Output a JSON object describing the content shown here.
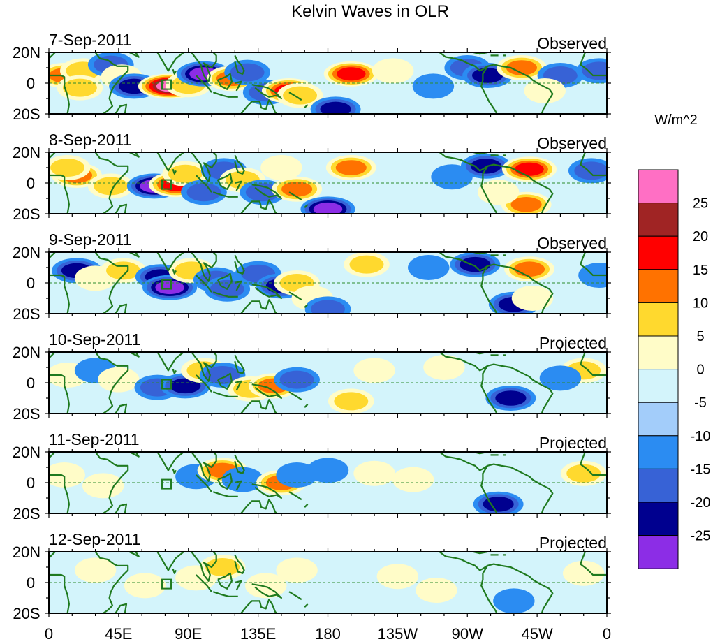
{
  "title": "Kelvin Waves in OLR",
  "units": "W/m^2",
  "chart_data": {
    "type": "heatmap",
    "title": "Kelvin Waves in OLR",
    "colorbar_label": "W/m^2",
    "colorbar_ticks": [
      "25",
      "20",
      "15",
      "10",
      "5",
      "0",
      "-5",
      "-10",
      "-15",
      "-20",
      "-25"
    ],
    "colorbar_levels": [
      30,
      25,
      20,
      15,
      10,
      5,
      0,
      -5,
      -10,
      -15,
      -20,
      -25
    ],
    "colorbar_colors": [
      "#ff6fc4",
      "#a02424",
      "#ff0000",
      "#ff7200",
      "#ffd92e",
      "#fffcc8",
      "#d3f4fb",
      "#a3cdfa",
      "#2b8cf2",
      "#3762d6",
      "#00008f",
      "#8c2de6"
    ],
    "x_ticks": [
      "0",
      "45E",
      "90E",
      "135E",
      "180",
      "135W",
      "90W",
      "45W",
      "0"
    ],
    "y_ticks": [
      "20N",
      "0",
      "20S"
    ],
    "x_range_deg": [
      0,
      360
    ],
    "y_range_deg": [
      -20,
      20
    ],
    "panels": [
      {
        "date": "7-Sep-2011",
        "status": "Observed",
        "blobs": [
          {
            "lon": 10,
            "lat": 5,
            "value": 15
          },
          {
            "lon": 22,
            "lat": 8,
            "value": 10
          },
          {
            "lon": 40,
            "lat": 12,
            "value": -10
          },
          {
            "lon": 47,
            "lat": 4,
            "value": 5
          },
          {
            "lon": 20,
            "lat": -3,
            "value": 10
          },
          {
            "lon": 55,
            "lat": -2,
            "value": -15
          },
          {
            "lon": 78,
            "lat": -2,
            "value": 30
          },
          {
            "lon": 90,
            "lat": -1,
            "value": 10
          },
          {
            "lon": 100,
            "lat": 6,
            "value": -20
          },
          {
            "lon": 118,
            "lat": 3,
            "value": 15
          },
          {
            "lon": 128,
            "lat": 7,
            "value": -10
          },
          {
            "lon": 140,
            "lat": -6,
            "value": -10
          },
          {
            "lon": 155,
            "lat": -5,
            "value": 20
          },
          {
            "lon": 162,
            "lat": -8,
            "value": 10
          },
          {
            "lon": 185,
            "lat": -17,
            "value": -15
          },
          {
            "lon": 195,
            "lat": 6,
            "value": 20
          },
          {
            "lon": 222,
            "lat": 8,
            "value": 5
          },
          {
            "lon": 248,
            "lat": -2,
            "value": -5
          },
          {
            "lon": 270,
            "lat": 10,
            "value": -10
          },
          {
            "lon": 283,
            "lat": 5,
            "value": -15
          },
          {
            "lon": 305,
            "lat": 10,
            "value": 15
          },
          {
            "lon": 330,
            "lat": 5,
            "value": -10
          },
          {
            "lon": 320,
            "lat": -5,
            "value": 5
          },
          {
            "lon": 355,
            "lat": 8,
            "value": -10
          }
        ]
      },
      {
        "date": "8-Sep-2011",
        "status": "Observed",
        "blobs": [
          {
            "lon": 18,
            "lat": 5,
            "value": 15
          },
          {
            "lon": 12,
            "lat": 10,
            "value": 10
          },
          {
            "lon": 40,
            "lat": -2,
            "value": 10
          },
          {
            "lon": 68,
            "lat": -2,
            "value": -20
          },
          {
            "lon": 82,
            "lat": -1,
            "value": 20
          },
          {
            "lon": 88,
            "lat": 6,
            "value": 10
          },
          {
            "lon": 100,
            "lat": -6,
            "value": -10
          },
          {
            "lon": 113,
            "lat": 8,
            "value": -10
          },
          {
            "lon": 125,
            "lat": 2,
            "value": 10
          },
          {
            "lon": 138,
            "lat": -6,
            "value": -10
          },
          {
            "lon": 150,
            "lat": 10,
            "value": 5
          },
          {
            "lon": 160,
            "lat": -4,
            "value": 15
          },
          {
            "lon": 180,
            "lat": -17,
            "value": -20
          },
          {
            "lon": 195,
            "lat": 10,
            "value": 15
          },
          {
            "lon": 260,
            "lat": 4,
            "value": -5
          },
          {
            "lon": 282,
            "lat": 11,
            "value": -15
          },
          {
            "lon": 310,
            "lat": 9,
            "value": 20
          },
          {
            "lon": 308,
            "lat": -14,
            "value": 15
          },
          {
            "lon": 290,
            "lat": -6,
            "value": 5
          },
          {
            "lon": 350,
            "lat": 8,
            "value": -10
          }
        ]
      },
      {
        "date": "9-Sep-2011",
        "status": "Observed",
        "blobs": [
          {
            "lon": 18,
            "lat": 8,
            "value": -15
          },
          {
            "lon": 30,
            "lat": 3,
            "value": 5
          },
          {
            "lon": 48,
            "lat": 8,
            "value": 10
          },
          {
            "lon": 72,
            "lat": 4,
            "value": -15
          },
          {
            "lon": 78,
            "lat": -3,
            "value": -20
          },
          {
            "lon": 92,
            "lat": 8,
            "value": 10
          },
          {
            "lon": 108,
            "lat": 2,
            "value": -10
          },
          {
            "lon": 115,
            "lat": -4,
            "value": -10
          },
          {
            "lon": 135,
            "lat": 6,
            "value": -10
          },
          {
            "lon": 150,
            "lat": -2,
            "value": -15
          },
          {
            "lon": 160,
            "lat": 0,
            "value": 10
          },
          {
            "lon": 170,
            "lat": -10,
            "value": 5
          },
          {
            "lon": 180,
            "lat": -17,
            "value": -10
          },
          {
            "lon": 205,
            "lat": 12,
            "value": 10
          },
          {
            "lon": 245,
            "lat": 10,
            "value": -5
          },
          {
            "lon": 275,
            "lat": 12,
            "value": -15
          },
          {
            "lon": 310,
            "lat": 9,
            "value": 15
          },
          {
            "lon": 300,
            "lat": -14,
            "value": -15
          },
          {
            "lon": 312,
            "lat": -10,
            "value": 5
          },
          {
            "lon": 355,
            "lat": 5,
            "value": -5
          }
        ]
      },
      {
        "date": "10-Sep-2011",
        "status": "Projected",
        "blobs": [
          {
            "lon": 12,
            "lat": 5,
            "value": 5
          },
          {
            "lon": 30,
            "lat": 8,
            "value": -5
          },
          {
            "lon": 45,
            "lat": 2,
            "value": 5
          },
          {
            "lon": 70,
            "lat": -3,
            "value": -10
          },
          {
            "lon": 88,
            "lat": -2,
            "value": -15
          },
          {
            "lon": 100,
            "lat": 8,
            "value": 10
          },
          {
            "lon": 112,
            "lat": 5,
            "value": -10
          },
          {
            "lon": 130,
            "lat": -4,
            "value": 10
          },
          {
            "lon": 145,
            "lat": -2,
            "value": 15
          },
          {
            "lon": 160,
            "lat": 2,
            "value": -10
          },
          {
            "lon": 195,
            "lat": -12,
            "value": 10
          },
          {
            "lon": 210,
            "lat": 8,
            "value": 5
          },
          {
            "lon": 255,
            "lat": 10,
            "value": 5
          },
          {
            "lon": 298,
            "lat": -10,
            "value": -15
          },
          {
            "lon": 345,
            "lat": 8,
            "value": 10
          },
          {
            "lon": 330,
            "lat": 3,
            "value": -5
          }
        ]
      },
      {
        "date": "11-Sep-2011",
        "status": "Projected",
        "blobs": [
          {
            "lon": 10,
            "lat": 5,
            "value": 5
          },
          {
            "lon": 35,
            "lat": -2,
            "value": 5
          },
          {
            "lon": 95,
            "lat": 4,
            "value": -5
          },
          {
            "lon": 112,
            "lat": 8,
            "value": 15
          },
          {
            "lon": 125,
            "lat": 2,
            "value": -5
          },
          {
            "lon": 150,
            "lat": 0,
            "value": 15
          },
          {
            "lon": 160,
            "lat": 5,
            "value": -5
          },
          {
            "lon": 180,
            "lat": 8,
            "value": -5
          },
          {
            "lon": 210,
            "lat": 6,
            "value": 5
          },
          {
            "lon": 235,
            "lat": 2,
            "value": 5
          },
          {
            "lon": 290,
            "lat": -14,
            "value": -15
          },
          {
            "lon": 345,
            "lat": 6,
            "value": 10
          }
        ]
      },
      {
        "date": "12-Sep-2011",
        "status": "Projected",
        "blobs": [
          {
            "lon": 30,
            "lat": 8,
            "value": 5
          },
          {
            "lon": 62,
            "lat": -2,
            "value": 5
          },
          {
            "lon": 95,
            "lat": 3,
            "value": 5
          },
          {
            "lon": 112,
            "lat": 10,
            "value": 10
          },
          {
            "lon": 140,
            "lat": -2,
            "value": 5
          },
          {
            "lon": 160,
            "lat": 8,
            "value": 5
          },
          {
            "lon": 225,
            "lat": 4,
            "value": 5
          },
          {
            "lon": 250,
            "lat": -5,
            "value": 5
          },
          {
            "lon": 300,
            "lat": -12,
            "value": -5
          },
          {
            "lon": 345,
            "lat": 6,
            "value": 5
          }
        ]
      }
    ]
  }
}
